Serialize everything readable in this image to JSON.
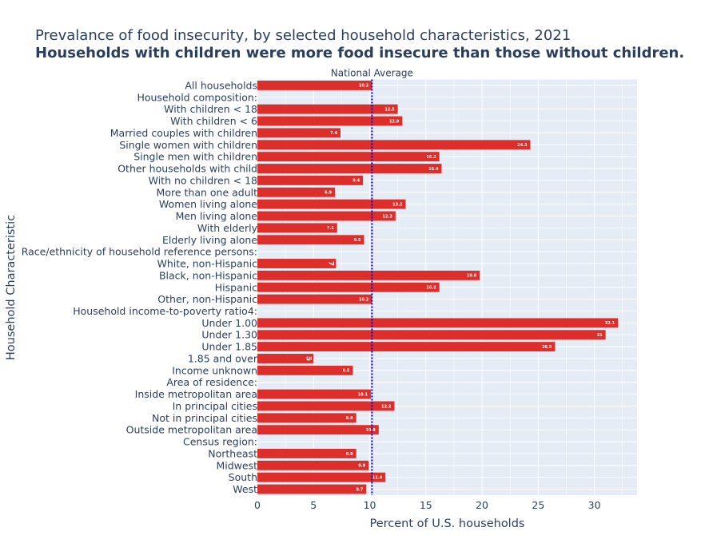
{
  "chart_data": {
    "type": "bar",
    "orientation": "horizontal",
    "title": "Prevalance of food insecurity, by selected household characteristics, 2021",
    "subtitle": "Households with children were more food insecure than those without children.",
    "xlabel": "Percent of U.S. households",
    "ylabel": "Household Characteristic",
    "xlim": [
      0,
      33.8
    ],
    "xticks": [
      0,
      5,
      10,
      15,
      20,
      25,
      30
    ],
    "grid": true,
    "bar_color": "#dc2f2b",
    "plot_background": "#e5ecf6",
    "reference_line": {
      "value": 10.2,
      "label": "National Average",
      "color": "#0000cc",
      "style": "dotted"
    },
    "categories": [
      "All households",
      "Household composition:",
      "With children < 18",
      "With children < 6",
      "Married couples with children",
      "Single women with children",
      "Single men with children",
      "Other households with child",
      "With no children < 18",
      "More than one adult",
      "Women living alone",
      "Men living alone",
      "With elderly",
      "Elderly living alone",
      "Race/ethnicity of household reference persons:",
      "White, non-Hispanic",
      "Black, non-Hispanic",
      "Hispanic",
      "Other, non-Hispanic",
      "Household income-to-poverty ratio4:",
      "Under 1.00",
      "Under 1.30",
      "Under 1.85",
      "1.85 and over",
      "Income unknown",
      "Area of residence:",
      "Inside metropolitan area",
      "In principal cities",
      "Not in principal cities",
      "Outside metropolitan area",
      "Census region:",
      "Northeast",
      "Midwest",
      "South",
      "West"
    ],
    "values": [
      10.2,
      null,
      12.5,
      12.9,
      7.4,
      24.3,
      16.2,
      16.4,
      9.4,
      6.9,
      13.2,
      12.3,
      7.1,
      9.5,
      null,
      7,
      19.8,
      16.2,
      10.2,
      null,
      32.1,
      31,
      26.5,
      5,
      8.5,
      null,
      10.1,
      12.2,
      8.8,
      10.8,
      null,
      8.8,
      9.9,
      11.4,
      9.7
    ],
    "value_labels": [
      "10.2",
      "",
      "12.5",
      "12.9",
      "7.4",
      "24.3",
      "16.2",
      "16.4",
      "9.4",
      "6.9",
      "13.2",
      "12.3",
      "7.1",
      "9.5",
      "",
      "7",
      "19.8",
      "16.2",
      "10.2",
      "",
      "32.1",
      "31",
      "26.5",
      "5",
      "8.5",
      "",
      "10.1",
      "12.2",
      "8.8",
      "10.8",
      "",
      "8.8",
      "9.9",
      "11.4",
      "9.7"
    ]
  }
}
